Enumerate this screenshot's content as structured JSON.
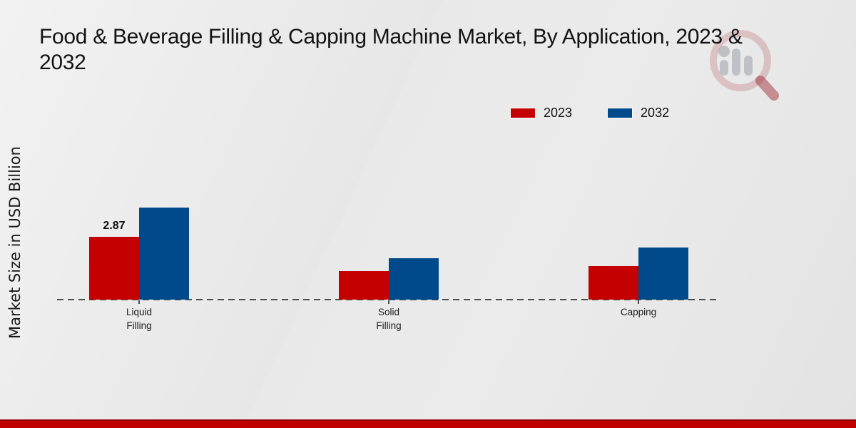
{
  "header": {
    "title_line1": "Food & Beverage Filling & Capping Machine Market, By Application, 2023 &",
    "title_line2": "2032"
  },
  "chart_data": {
    "type": "bar",
    "title": "Food & Beverage Filling & Capping Machine Market, By Application, 2023 & 2032",
    "xlabel": "",
    "ylabel": "Market Size in USD Billion",
    "categories": [
      "Liquid Filling",
      "Solid Filling",
      "Capping"
    ],
    "series": [
      {
        "name": "2023",
        "color": "#c40000",
        "values": [
          2.87,
          1.31,
          1.53
        ]
      },
      {
        "name": "2032",
        "color": "#004a8c",
        "values": [
          4.21,
          1.9,
          2.37
        ]
      }
    ],
    "annotations": [
      {
        "text": "2.87",
        "category": "Liquid Filling",
        "series": "2023"
      }
    ],
    "legend_position": "top-right",
    "grid": false,
    "baseline_style": "dashed",
    "ylim": [
      0,
      4.5
    ]
  },
  "colors": {
    "bar_2023": "#c40000",
    "bar_2032": "#004a8c",
    "bottom_band": "#c00000",
    "background": "#e9e9e9",
    "text": "#141414"
  },
  "watermark": {
    "icon": "magnifier-bar-chart-logo"
  }
}
